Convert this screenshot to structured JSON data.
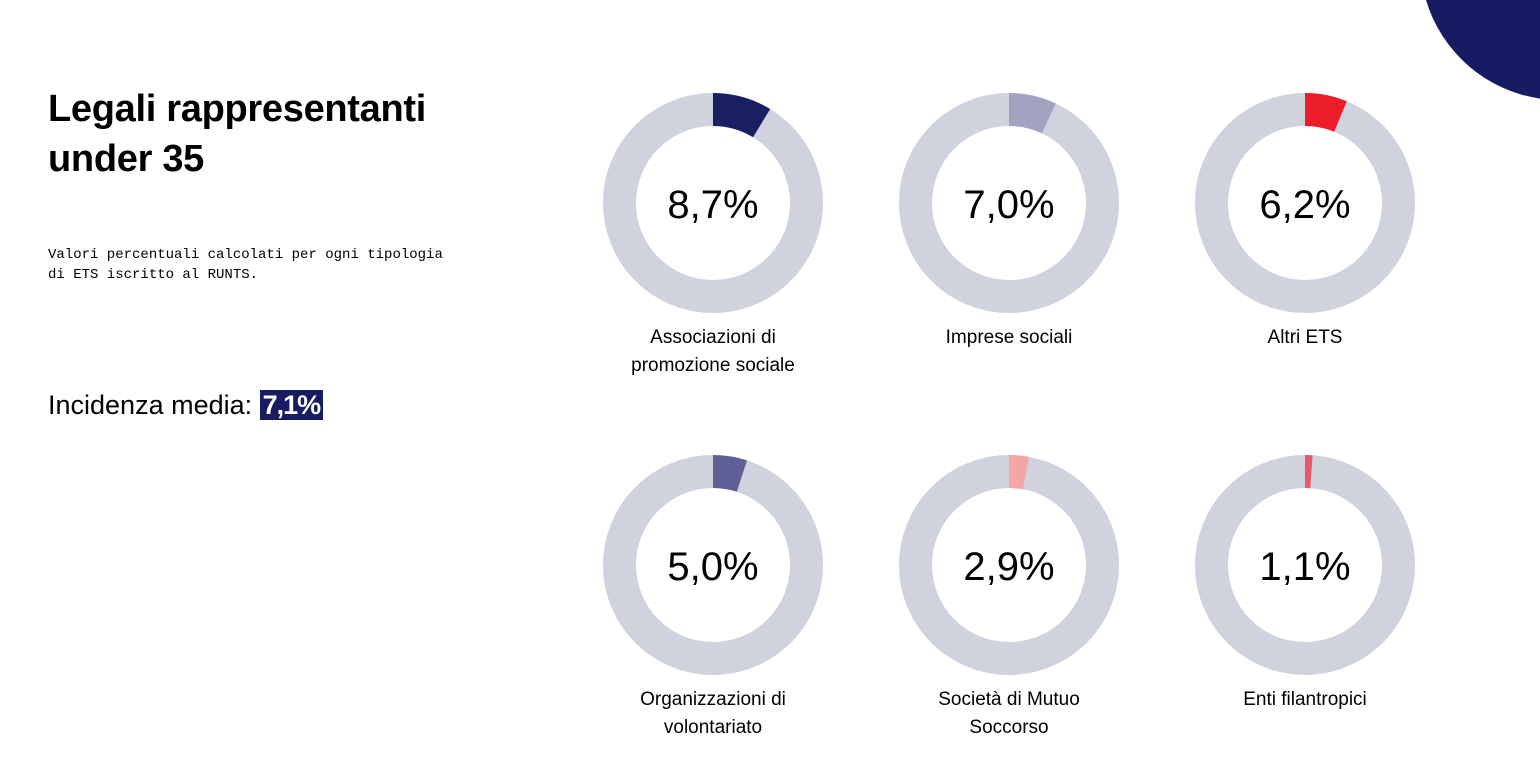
{
  "title": "Legali rappresentanti under 35",
  "subtitle": "Valori percentuali calcolati per ogni tipologia di ETS iscritto al RUNTS.",
  "average": {
    "label": "Incidenza media:",
    "value": "7,1%"
  },
  "colors": {
    "track": "#d0d2de",
    "accent": "#171c62"
  },
  "chart_data": {
    "type": "pie",
    "subtype": "donut-grid",
    "unit": "%",
    "items": [
      {
        "category": [
          "Associazioni di",
          "promozione sociale"
        ],
        "value": 8.7,
        "label": "8,7%",
        "color": "#1a1f64"
      },
      {
        "category": [
          "Imprese sociali"
        ],
        "value": 7.0,
        "label": "7,0%",
        "color": "#a2a3c0"
      },
      {
        "category": [
          "Altri ETS"
        ],
        "value": 6.2,
        "label": "6,2%",
        "color": "#ec1c2b"
      },
      {
        "category": [
          "Organizzazioni di",
          "volontariato"
        ],
        "value": 5.0,
        "label": "5,0%",
        "color": "#5d5f96"
      },
      {
        "category": [
          "Società di Mutuo",
          "Soccorso"
        ],
        "value": 2.9,
        "label": "2,9%",
        "color": "#f4a5a8"
      },
      {
        "category": [
          "Enti filantropici"
        ],
        "value": 1.1,
        "label": "1,1%",
        "color": "#e85a65"
      }
    ]
  }
}
